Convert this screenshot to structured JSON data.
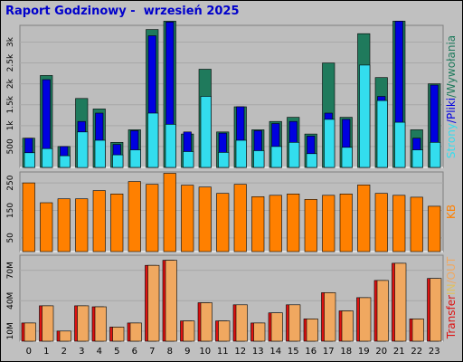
{
  "title": "Raport Godzinowy -  wrzesień 2025",
  "colors": {
    "background": "#c0c0c0",
    "plot_bg": "#bdbdbd",
    "wywolania": "#1f7a5c",
    "pliki": "#0000e0",
    "strony": "#33ddee",
    "kb": "#ff8000",
    "transfer_in": "#dd1111",
    "transfer_out": "#f0a860"
  },
  "chart_data": [
    {
      "type": "bar",
      "categories": [
        "0",
        "1",
        "2",
        "3",
        "4",
        "5",
        "6",
        "7",
        "8",
        "9",
        "10",
        "11",
        "12",
        "13",
        "14",
        "15",
        "16",
        "17",
        "18",
        "19",
        "20",
        "21",
        "22",
        "23"
      ],
      "yticks": [
        "500",
        "1k",
        "1.5k",
        "2k",
        "2.5k",
        "3k"
      ],
      "ylim": [
        0,
        3400
      ],
      "right_label": [
        "Strony",
        "/",
        "Pliki",
        "/",
        "Wywołania"
      ],
      "series": [
        {
          "name": "Wywołania",
          "values": [
            700,
            2200,
            500,
            1650,
            1400,
            600,
            900,
            3300,
            3500,
            800,
            2350,
            850,
            1450,
            900,
            1100,
            1200,
            800,
            2500,
            1200,
            3200,
            2150,
            3500,
            900,
            2000
          ]
        },
        {
          "name": "Pliki",
          "values": [
            700,
            2100,
            500,
            1100,
            1300,
            550,
            880,
            3150,
            3480,
            850,
            1500,
            820,
            1450,
            880,
            1050,
            1100,
            750,
            1300,
            1150,
            1200,
            1700,
            3500,
            700,
            1970
          ]
        },
        {
          "name": "Strony",
          "values": [
            350,
            450,
            280,
            850,
            650,
            300,
            420,
            1300,
            1030,
            380,
            1700,
            360,
            650,
            400,
            500,
            600,
            330,
            1150,
            480,
            2450,
            1600,
            1080,
            420,
            600
          ]
        }
      ]
    },
    {
      "type": "bar",
      "categories": [
        "0",
        "1",
        "2",
        "3",
        "4",
        "5",
        "6",
        "7",
        "8",
        "9",
        "10",
        "11",
        "12",
        "13",
        "14",
        "15",
        "16",
        "17",
        "18",
        "19",
        "20",
        "21",
        "22",
        "23"
      ],
      "yticks": [
        "50",
        "150",
        "250"
      ],
      "ylim": [
        0,
        290
      ],
      "right_label": [
        "KB"
      ],
      "series": [
        {
          "name": "KB",
          "values": [
            250,
            178,
            192,
            192,
            222,
            210,
            255,
            245,
            285,
            242,
            235,
            212,
            245,
            200,
            205,
            210,
            190,
            205,
            210,
            243,
            212,
            205,
            198,
            165
          ]
        }
      ]
    },
    {
      "type": "bar",
      "categories": [
        "0",
        "1",
        "2",
        "3",
        "4",
        "5",
        "6",
        "7",
        "8",
        "9",
        "10",
        "11",
        "12",
        "13",
        "14",
        "15",
        "16",
        "17",
        "18",
        "19",
        "20",
        "21",
        "22",
        "23"
      ],
      "yticks": [
        "10M",
        "40M",
        "70M"
      ],
      "ylim": [
        0,
        85
      ],
      "right_label": [
        "Transfer",
        "IN",
        "/OUT"
      ],
      "series": [
        {
          "name": "IN",
          "values": [
            18,
            35,
            10,
            35,
            34,
            14,
            18,
            75,
            80,
            20,
            38,
            20,
            36,
            18,
            28,
            36,
            22,
            48,
            30,
            43,
            60,
            77,
            22,
            62
          ]
        },
        {
          "name": "OUT",
          "values": [
            18,
            35,
            10,
            35,
            34,
            14,
            18,
            75,
            80,
            20,
            38,
            20,
            36,
            18,
            28,
            36,
            22,
            48,
            30,
            43,
            60,
            77,
            22,
            62
          ]
        }
      ]
    }
  ]
}
